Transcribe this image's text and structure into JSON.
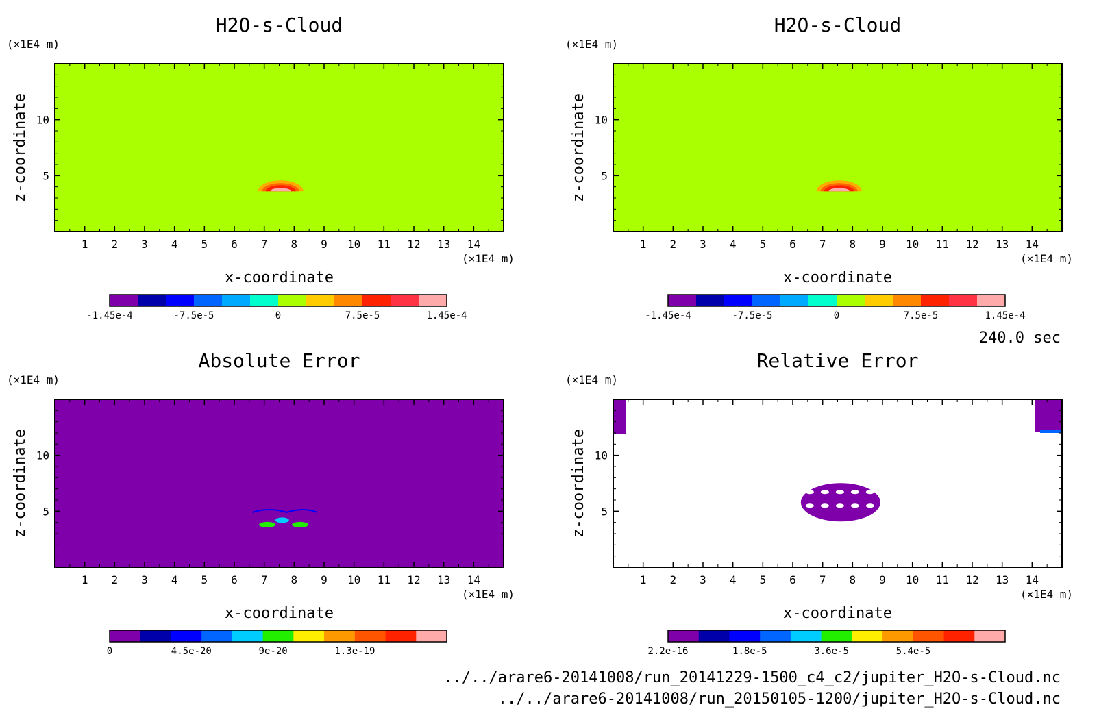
{
  "time_label": "240.0 sec",
  "files": [
    "../../arare6-20141008/run_20141229-1500_c4_c2/jupiter_H2O-s-Cloud.nc",
    "../../arare6-20141008/run_20150105-1200/jupiter_H2O-s-Cloud.nc"
  ],
  "colors": {
    "background_field": "#aaff00",
    "absolute_bg": "#7f00aa",
    "relative_bg": "#ffffff",
    "frame": "#000000"
  },
  "chart_data": [
    {
      "type": "heatmap",
      "title": "H2O-s-Cloud",
      "xlabel": "x-coordinate",
      "ylabel": "z-coordinate",
      "x_unit": "(×1E4 m)",
      "y_unit": "(×1E4 m)",
      "xlim": [
        0,
        15
      ],
      "ylim": [
        0,
        15
      ],
      "x_ticks": [
        "1",
        "2",
        "3",
        "4",
        "5",
        "6",
        "7",
        "8",
        "9",
        "10",
        "11",
        "12",
        "13",
        "14"
      ],
      "y_ticks": [
        "5",
        "10"
      ],
      "colorbar": {
        "colors": [
          "#7f00aa",
          "#0000aa",
          "#0000ff",
          "#0066ff",
          "#00aaff",
          "#00ffcc",
          "#aaff00",
          "#ffcc00",
          "#ff8800",
          "#ff2200",
          "#ff3344",
          "#ffaaaa"
        ],
        "labels": [
          "-1.45e-4",
          "-7.5e-5",
          "0",
          "7.5e-5",
          "1.45e-4"
        ]
      }
    },
    {
      "type": "heatmap",
      "title": "H2O-s-Cloud",
      "xlabel": "x-coordinate",
      "ylabel": "z-coordinate",
      "x_unit": "(×1E4 m)",
      "y_unit": "(×1E4 m)",
      "xlim": [
        0,
        15
      ],
      "ylim": [
        0,
        15
      ],
      "x_ticks": [
        "1",
        "2",
        "3",
        "4",
        "5",
        "6",
        "7",
        "8",
        "9",
        "10",
        "11",
        "12",
        "13",
        "14"
      ],
      "y_ticks": [
        "5",
        "10"
      ],
      "colorbar": {
        "colors": [
          "#7f00aa",
          "#0000aa",
          "#0000ff",
          "#0066ff",
          "#00aaff",
          "#00ffcc",
          "#aaff00",
          "#ffcc00",
          "#ff8800",
          "#ff2200",
          "#ff3344",
          "#ffaaaa"
        ],
        "labels": [
          "-1.45e-4",
          "-7.5e-5",
          "0",
          "7.5e-5",
          "1.45e-4"
        ]
      }
    },
    {
      "type": "heatmap",
      "title": "Absolute Error",
      "xlabel": "x-coordinate",
      "ylabel": "z-coordinate",
      "x_unit": "(×1E4 m)",
      "y_unit": "(×1E4 m)",
      "xlim": [
        0,
        15
      ],
      "ylim": [
        0,
        15
      ],
      "x_ticks": [
        "1",
        "2",
        "3",
        "4",
        "5",
        "6",
        "7",
        "8",
        "9",
        "10",
        "11",
        "12",
        "13",
        "14"
      ],
      "y_ticks": [
        "5",
        "10"
      ],
      "colorbar": {
        "colors": [
          "#7f00aa",
          "#0000aa",
          "#0000ff",
          "#0066ff",
          "#00ccff",
          "#22ee00",
          "#ffee00",
          "#ff9900",
          "#ff5500",
          "#ff2200",
          "#ffaaaa"
        ],
        "labels": [
          "0",
          "4.5e-20",
          "9e-20",
          "1.3e-19"
        ]
      }
    },
    {
      "type": "heatmap",
      "title": "Relative Error",
      "xlabel": "x-coordinate",
      "ylabel": "z-coordinate",
      "x_unit": "(×1E4 m)",
      "y_unit": "(×1E4 m)",
      "xlim": [
        0,
        15
      ],
      "ylim": [
        0,
        15
      ],
      "x_ticks": [
        "1",
        "2",
        "3",
        "4",
        "5",
        "6",
        "7",
        "8",
        "9",
        "10",
        "11",
        "12",
        "13",
        "14"
      ],
      "y_ticks": [
        "5",
        "10"
      ],
      "colorbar": {
        "colors": [
          "#7f00aa",
          "#0000aa",
          "#0000ff",
          "#0066ff",
          "#00ccff",
          "#22ee00",
          "#ffee00",
          "#ff9900",
          "#ff5500",
          "#ff2200",
          "#ffaaaa"
        ],
        "labels": [
          "2.2e-16",
          "1.8e-5",
          "3.6e-5",
          "5.4e-5"
        ]
      }
    }
  ]
}
